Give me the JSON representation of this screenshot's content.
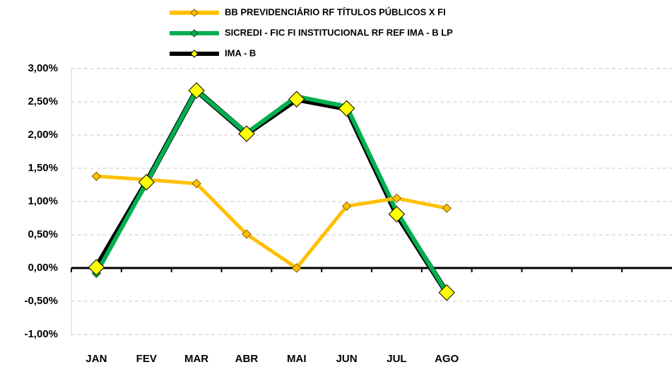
{
  "chart_data": {
    "type": "line",
    "categories": [
      "JAN",
      "FEV",
      "MAR",
      "ABR",
      "MAI",
      "JUN",
      "JUL",
      "AGO",
      null,
      null,
      null,
      null
    ],
    "series": [
      {
        "name": "BB PREVIDENCIÁRIO RF TÍTULOS PÚBLICOS X FI",
        "color": "#ffc000",
        "values": [
          1.38,
          1.33,
          1.27,
          0.51,
          0.0,
          0.93,
          1.05,
          0.9,
          null,
          null,
          null,
          null
        ]
      },
      {
        "name": "SICREDI - FIC FI INSTITUCIONAL RF REF IMA - B LP",
        "color": "#00b050",
        "values": [
          -0.08,
          1.28,
          2.67,
          2.03,
          2.58,
          2.43,
          0.85,
          -0.37,
          null,
          null,
          null,
          null
        ]
      },
      {
        "name": "IMA - B",
        "color": "#000000",
        "values": [
          0.01,
          1.29,
          2.67,
          2.02,
          2.54,
          2.4,
          0.81,
          -0.37,
          null,
          null,
          null,
          null
        ]
      }
    ],
    "ylim": [
      -1,
      3
    ],
    "yticks": [
      {
        "value": -1,
        "label": "-1,00%"
      },
      {
        "value": -0.5,
        "label": "-0,50%"
      },
      {
        "value": 0,
        "label": "0,00%"
      },
      {
        "value": 0.5,
        "label": "0,50%"
      },
      {
        "value": 1,
        "label": "1,00%"
      },
      {
        "value": 1.5,
        "label": "1,50%"
      },
      {
        "value": 2,
        "label": "2,00%"
      },
      {
        "value": 2.5,
        "label": "2,50%"
      },
      {
        "value": 3,
        "label": "3,00%"
      }
    ],
    "grid": true
  }
}
